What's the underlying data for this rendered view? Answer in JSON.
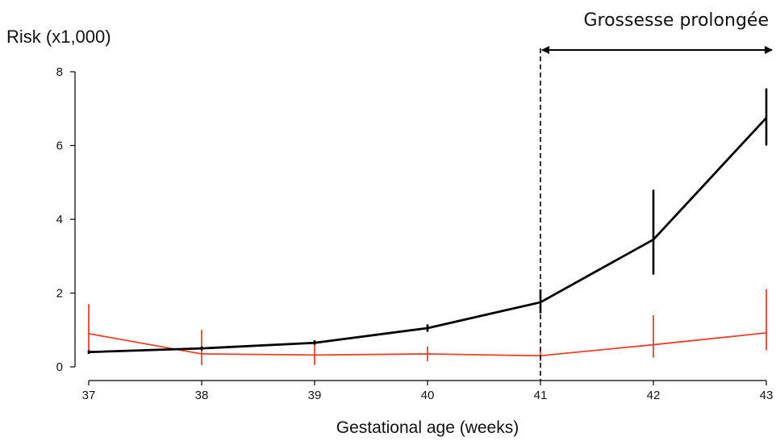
{
  "chart_data": {
    "type": "line",
    "title": "",
    "xlabel": "Gestational age (weeks)",
    "ylabel": "Risk  (x1,000)",
    "x": [
      37,
      38,
      39,
      40,
      41,
      42,
      43
    ],
    "xlim": [
      37,
      43
    ],
    "ylim": [
      0,
      8
    ],
    "yticks": [
      0,
      2,
      4,
      6,
      8
    ],
    "grid": false,
    "series": [
      {
        "color": "#000000",
        "values": [
          0.4,
          0.5,
          0.65,
          1.05,
          1.75,
          3.45,
          6.75
        ],
        "ci_low": [
          0.35,
          0.45,
          0.6,
          0.95,
          1.45,
          2.5,
          6.0
        ],
        "ci_high": [
          0.45,
          0.55,
          0.72,
          1.15,
          2.1,
          4.8,
          7.55
        ]
      },
      {
        "color": "#e8402a",
        "values": [
          0.9,
          0.35,
          0.32,
          0.35,
          0.3,
          0.6,
          0.92
        ],
        "ci_low": [
          0.35,
          0.05,
          0.05,
          0.15,
          0.15,
          0.25,
          0.45
        ],
        "ci_high": [
          1.7,
          1.0,
          0.65,
          0.55,
          0.45,
          1.4,
          2.1
        ]
      }
    ],
    "annotations": [
      {
        "text": "Grossesse prolongée",
        "x_start": 41,
        "x_end": 43
      }
    ]
  }
}
